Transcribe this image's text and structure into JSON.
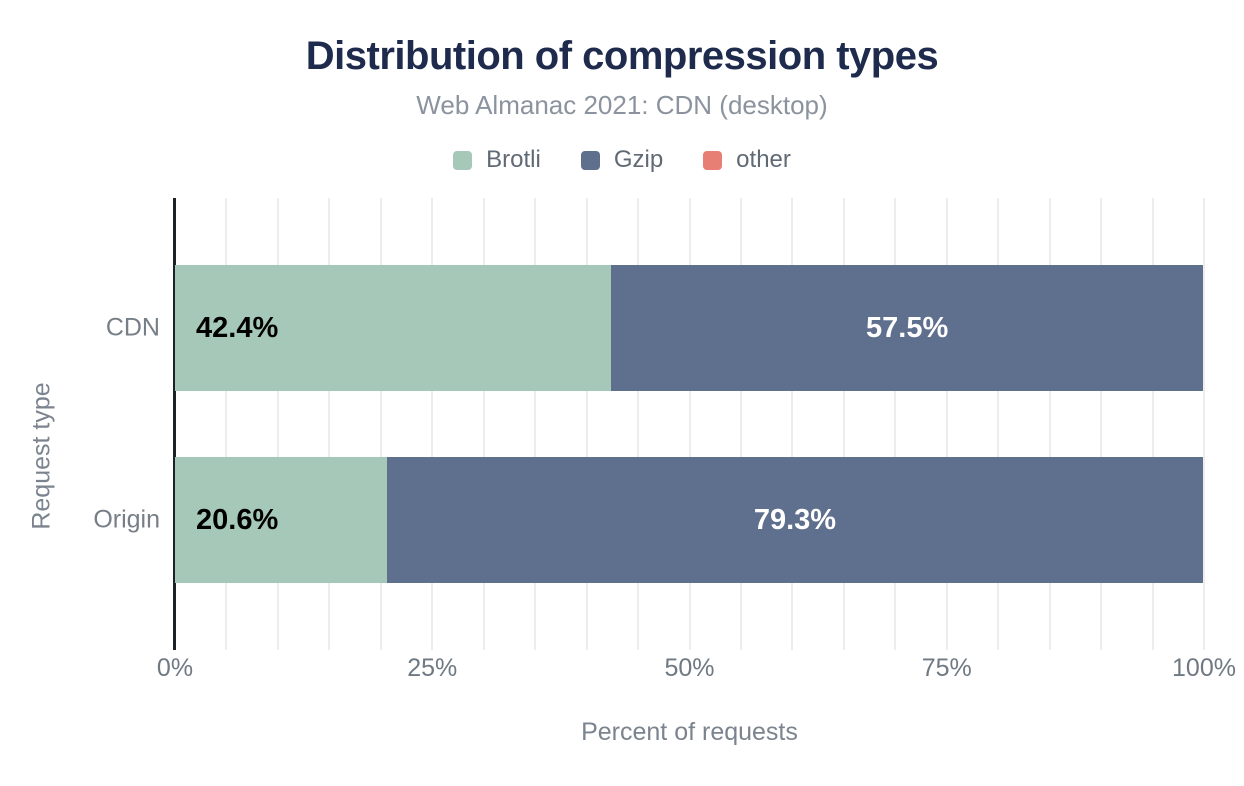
{
  "chart_data": {
    "type": "bar",
    "orientation": "horizontal",
    "stacked": true,
    "title": "Distribution of compression types",
    "subtitle": "Web Almanac 2021: CDN (desktop)",
    "xlabel": "Percent of requests",
    "ylabel": "Request type",
    "xlim": [
      0,
      100
    ],
    "grid_interval_percent": 5,
    "legend_position": "top",
    "categories": [
      "CDN",
      "Origin"
    ],
    "series": [
      {
        "name": "Brotli",
        "color": "#a5c8b8",
        "values": [
          42.4,
          20.6
        ],
        "labels": [
          "42.4%",
          "20.6%"
        ],
        "label_color": "#000000",
        "label_align": "left"
      },
      {
        "name": "Gzip",
        "color": "#5f6f8e",
        "values": [
          57.5,
          79.3
        ],
        "labels": [
          "57.5%",
          "79.3%"
        ],
        "label_color": "#ffffff",
        "label_align": "center"
      },
      {
        "name": "other",
        "color": "#e87f74",
        "values": [
          0.1,
          0.1
        ],
        "labels": [
          "",
          ""
        ],
        "label_color": "#000000",
        "label_align": "center"
      }
    ],
    "xticks": [
      0,
      25,
      50,
      75,
      100
    ],
    "xtick_labels": [
      "0%",
      "25%",
      "50%",
      "75%",
      "100%"
    ]
  },
  "colors": {
    "title": "#1e2b4d",
    "subtitle": "#8b939e",
    "axis_line": "#1d2129",
    "gridline": "#ededed",
    "tick_text": "#6f7983",
    "axis_title_text": "#7b848e",
    "legend_text": "#606a75"
  }
}
